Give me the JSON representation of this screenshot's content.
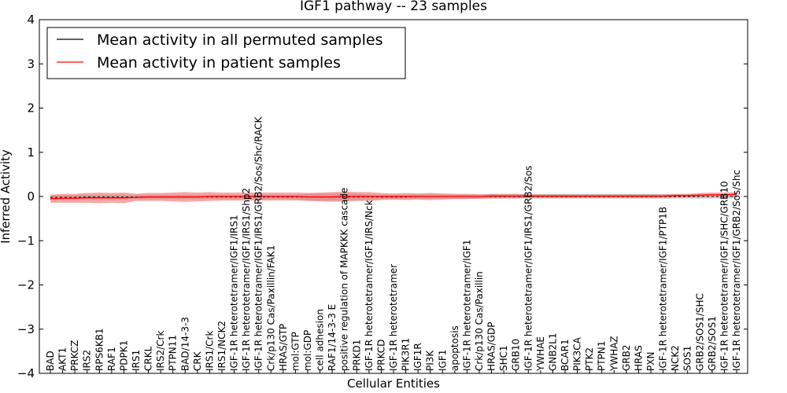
{
  "chart_data": {
    "type": "line",
    "title": "IGF1 pathway -- 23 samples",
    "xlabel": "Cellular Entities",
    "ylabel": "Inferred Activity",
    "ylim": [
      -4,
      4
    ],
    "yticks": [
      "−4",
      "−3",
      "−2",
      "−1",
      "0",
      "1",
      "2",
      "3",
      "4"
    ],
    "legend": {
      "position": "top-left",
      "entries": [
        {
          "label": "Mean activity in all permuted samples",
          "color": "#000000"
        },
        {
          "label": "Mean activity in patient samples",
          "color": "#ff0000"
        }
      ]
    },
    "categories": [
      "BAD",
      "AKT1",
      "PRKCZ",
      "IRS2",
      "RPS6KB1",
      "RAF1",
      "PDPK1",
      "IRS1",
      "CRKL",
      "IRS2/Crk",
      "PTPN11",
      "BAD/14-3-3",
      "CRK",
      "IRS1/Crk",
      "IRS1/NCK2",
      "IGF-1R heterotetramer/IGF1/IRS1",
      "IGF-1R heterotetramer/IGF1/IRS1/Shp2",
      "IGF-1R heterotetramer/IGF1/IRS1/GRB2/Sos/Shc/RACK",
      "Crk/p130 Cas/Paxillin/FAK1",
      "HRAS/GTP",
      "mol:GTP",
      "mol:GDP",
      "cell adhesion",
      "RAF1/14-3-3 E",
      "positive regulation of MAPKKK cascade",
      "PRKD1",
      "IGF-1R heterotetramer/IGF1/IRS/Nck",
      "PRKCD",
      "IGF-1R heterotetramer",
      "PIK3R1",
      "IGF1R",
      "PI3K",
      "IGF1",
      "apoptosis",
      "IGF-1R heterotetramer/IGF1",
      "Crk/p130 Cas/Paxillin",
      "HRAS/GDP",
      "SHC1",
      "GRB10",
      "IGF-1R heterotetramer/IGF1/IRS1/GRB2/Sos",
      "YWHAE",
      "GNB2L1",
      "BCAR1",
      "PIK3CA",
      "PTK2",
      "PTPN1",
      "YWHAZ",
      "GRB2",
      "HRAS",
      "PXN",
      "IGF-1R heterotetramer/IGF1/PTP1B",
      "NCK2",
      "SOS1",
      "GRB2/SOS1/SHC",
      "GRB2/SOS1",
      "IGF-1R heterotetramer/IGF1/SHC/GRB10",
      "IGF-1R heterotetramer/IGF1/GRB2/Sos/Shc"
    ],
    "series": [
      {
        "name": "Mean activity in all permuted samples",
        "color": "#000000",
        "values": [
          -0.02,
          -0.02,
          -0.02,
          -0.01,
          -0.01,
          -0.01,
          -0.01,
          -0.01,
          -0.01,
          -0.01,
          -0.01,
          -0.01,
          -0.01,
          -0.01,
          -0.01,
          -0.01,
          -0.01,
          -0.01,
          -0.01,
          -0.01,
          -0.01,
          -0.01,
          -0.01,
          -0.01,
          -0.01,
          -0.01,
          -0.01,
          -0.01,
          -0.01,
          -0.01,
          0,
          0,
          0,
          0,
          0,
          0,
          0,
          0,
          0,
          0,
          0,
          0,
          0,
          0,
          0,
          0,
          0,
          0,
          0,
          0,
          0,
          0,
          0,
          0,
          0,
          0,
          0
        ],
        "band": [
          0.05,
          0.05,
          0.05,
          0.05,
          0.05,
          0.05,
          0.05,
          0.05,
          0.05,
          0.05,
          0.05,
          0.05,
          0.05,
          0.05,
          0.05,
          0.05,
          0.05,
          0.05,
          0.05,
          0.05,
          0.05,
          0.08,
          0.08,
          0.08,
          0.08,
          0.08,
          0.06,
          0.05,
          0.05,
          0.05,
          0.05,
          0.05,
          0.05,
          0.05,
          0.05,
          0.05,
          0.05,
          0.05,
          0.05,
          0.05,
          0.05,
          0.05,
          0.05,
          0.05,
          0.05,
          0.05,
          0.05,
          0.05,
          0.05,
          0.05,
          0.05,
          0.05,
          0.05,
          0.05,
          0.05,
          0.05,
          0.05
        ]
      },
      {
        "name": "Mean activity in patient samples",
        "color": "#ff0000",
        "values": [
          -0.05,
          -0.04,
          -0.04,
          -0.03,
          -0.03,
          -0.03,
          -0.03,
          -0.02,
          -0.01,
          -0.01,
          -0.01,
          -0.01,
          -0.01,
          0.0,
          0.0,
          0.0,
          0.0,
          0.0,
          0.0,
          0.0,
          0.0,
          -0.01,
          -0.01,
          -0.01,
          0.0,
          0.0,
          0.0,
          0.0,
          0.0,
          0.0,
          0.0,
          0.0,
          0.0,
          0.0,
          0.0,
          0.0,
          0.01,
          0.01,
          0.01,
          0.01,
          0.01,
          0.01,
          0.01,
          0.01,
          0.01,
          0.01,
          0.01,
          0.01,
          0.01,
          0.01,
          0.01,
          0.02,
          0.02,
          0.03,
          0.04,
          0.04,
          0.05
        ],
        "band": [
          0.09,
          0.1,
          0.1,
          0.11,
          0.12,
          0.11,
          0.12,
          0.08,
          0.09,
          0.09,
          0.1,
          0.11,
          0.1,
          0.1,
          0.09,
          0.09,
          0.09,
          0.09,
          0.09,
          0.09,
          0.09,
          0.09,
          0.1,
          0.11,
          0.11,
          0.1,
          0.1,
          0.08,
          0.07,
          0.08,
          0.07,
          0.08,
          0.07,
          0.06,
          0.06,
          0.05,
          0.05,
          0.05,
          0.05,
          0.04,
          0.04,
          0.04,
          0.04,
          0.04,
          0.04,
          0.04,
          0.04,
          0.04,
          0.04,
          0.04,
          0.04,
          0.04,
          0.04,
          0.05,
          0.05,
          0.05,
          0.05
        ]
      }
    ]
  }
}
